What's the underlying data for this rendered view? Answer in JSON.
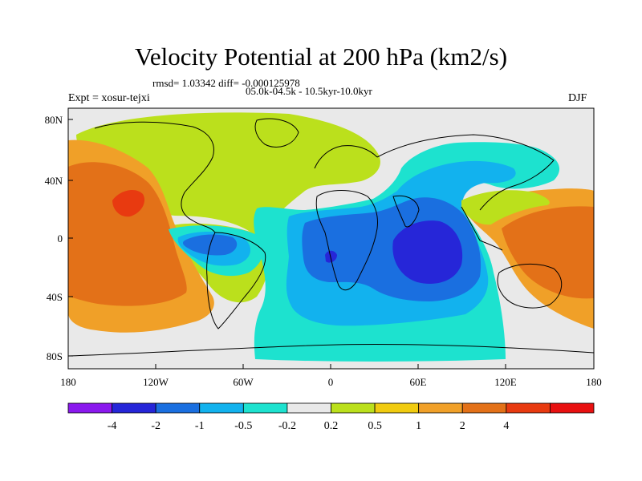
{
  "title": "Velocity Potential at 200 hPa (km2/s)",
  "stats_line": "rmsd= 1.03342 diff= -0.000125978",
  "period_line": "05.0k-04.5k - 10.5kyr-10.0kyr",
  "experiment_label": "Expt = xosur-tejxi",
  "season_label": "DJF",
  "lat_ticks": [
    "80N",
    "40N",
    "0",
    "40S",
    "80S"
  ],
  "lon_ticks": [
    "180",
    "120W",
    "60W",
    "0",
    "60E",
    "120E",
    "180"
  ],
  "colorbar": {
    "colors": [
      "#8a18ee",
      "#2626d8",
      "#1a6fe0",
      "#12b2ee",
      "#1de2cf",
      "#e9e9e9",
      "#bbe01c",
      "#f0cb10",
      "#f0a028",
      "#e37118",
      "#e83a10",
      "#e81010"
    ],
    "labels": [
      "-4",
      "-2",
      "-1",
      "-0.5",
      "-0.2",
      "0.2",
      "0.5",
      "1",
      "2",
      "4"
    ]
  }
}
